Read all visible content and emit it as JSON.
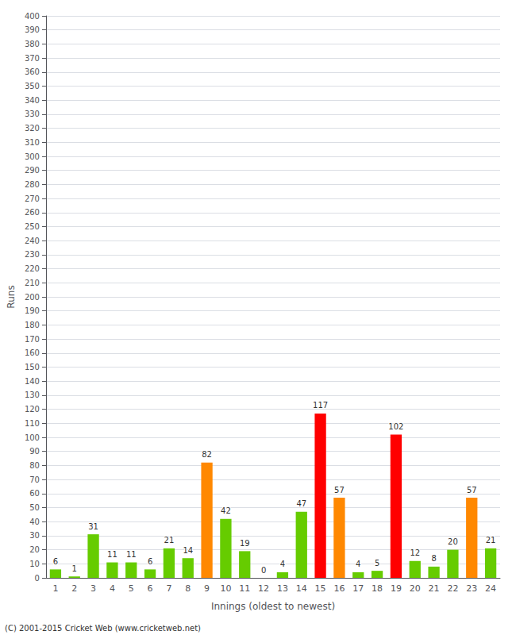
{
  "chart_data": {
    "type": "bar",
    "xlabel": "Innings (oldest to newest)",
    "ylabel": "Runs",
    "categories": [
      "1",
      "2",
      "3",
      "4",
      "5",
      "6",
      "7",
      "8",
      "9",
      "10",
      "11",
      "12",
      "13",
      "14",
      "15",
      "16",
      "17",
      "18",
      "19",
      "20",
      "21",
      "22",
      "23",
      "24"
    ],
    "values": [
      6,
      1,
      31,
      11,
      11,
      6,
      21,
      14,
      82,
      42,
      19,
      0,
      4,
      47,
      117,
      57,
      4,
      5,
      102,
      12,
      8,
      20,
      57,
      21
    ],
    "colors": [
      "#66cc00",
      "#66cc00",
      "#66cc00",
      "#66cc00",
      "#66cc00",
      "#66cc00",
      "#66cc00",
      "#66cc00",
      "#ff8800",
      "#66cc00",
      "#66cc00",
      "#66cc00",
      "#66cc00",
      "#66cc00",
      "#ff0000",
      "#ff8800",
      "#66cc00",
      "#66cc00",
      "#ff0000",
      "#66cc00",
      "#66cc00",
      "#66cc00",
      "#ff8800",
      "#66cc00"
    ],
    "ylim": [
      0,
      400
    ],
    "yticks": [
      0,
      10,
      20,
      30,
      40,
      50,
      60,
      70,
      80,
      90,
      100,
      110,
      120,
      130,
      140,
      150,
      160,
      170,
      180,
      190,
      200,
      210,
      220,
      230,
      240,
      250,
      260,
      270,
      280,
      290,
      300,
      310,
      320,
      330,
      340,
      350,
      360,
      370,
      380,
      390,
      400
    ],
    "grid": true,
    "data_labels": true,
    "annotations": [
      "(C) 2001-2015 Cricket Web (www.cricketweb.net)"
    ]
  }
}
